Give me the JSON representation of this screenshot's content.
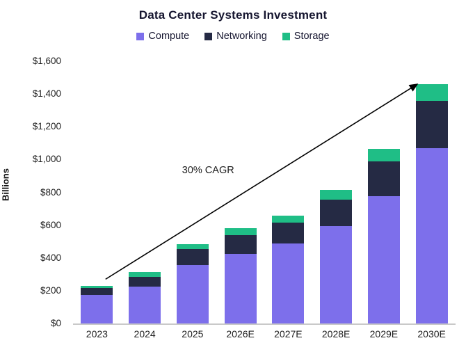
{
  "chart_data": {
    "type": "bar",
    "stacked": true,
    "title": "Data Center Systems Investment",
    "ylabel": "Billions",
    "categories": [
      "2023",
      "2024",
      "2025",
      "2026E",
      "2027E",
      "2028E",
      "2029E",
      "2030E"
    ],
    "series": [
      {
        "name": "Compute",
        "color": "#7d6feb",
        "values": [
          175,
          225,
          355,
          425,
          490,
          595,
          775,
          1070
        ]
      },
      {
        "name": "Networking",
        "color": "#252a44",
        "values": [
          40,
          60,
          100,
          115,
          125,
          160,
          215,
          290
        ]
      },
      {
        "name": "Storage",
        "color": "#1fbe86",
        "values": [
          15,
          30,
          30,
          40,
          45,
          60,
          75,
          100
        ]
      }
    ],
    "totals": [
      230,
      315,
      485,
      580,
      660,
      815,
      1065,
      1460
    ],
    "ylim": [
      0,
      1600
    ],
    "ytick_step": 200,
    "ytick_labels": [
      "$0",
      "$200",
      "$400",
      "$600",
      "$800",
      "$1,000",
      "$1,200",
      "$1,400",
      "$1,600"
    ],
    "grid": false,
    "legend_position": "top",
    "annotation": {
      "label": "30% CAGR",
      "label_pos": {
        "x_frac": 0.285,
        "value": 930
      },
      "arrow": {
        "from": {
          "x_frac": 0.085,
          "value": 270
        },
        "to": {
          "x_frac": 0.9,
          "value": 1460
        }
      }
    }
  }
}
